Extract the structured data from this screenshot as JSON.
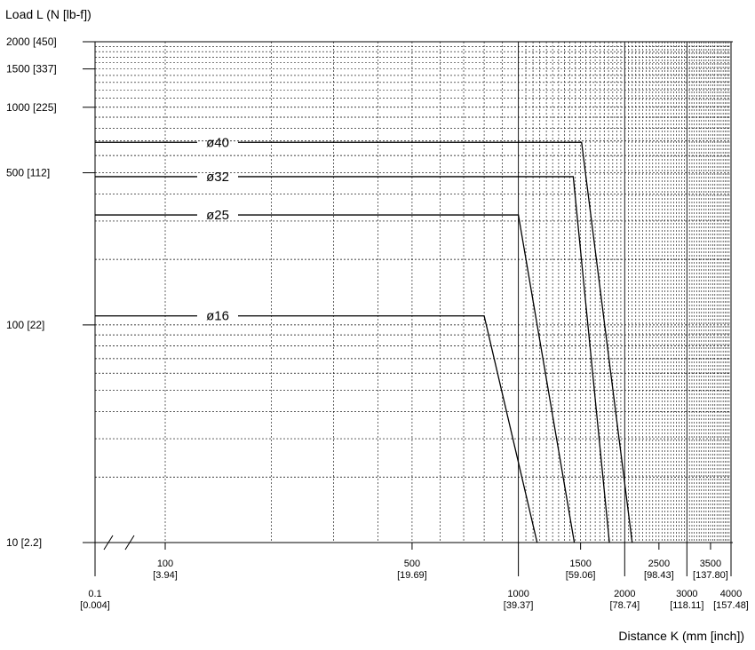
{
  "chart_data": {
    "type": "line",
    "xlabel": "Distance K (mm [inch])",
    "ylabel": "Load L (N [lb-f])",
    "grid": true,
    "x_scale": "log",
    "y_scale": "log",
    "x_axis_break": true,
    "xlim": [
      0.1,
      4000
    ],
    "ylim": [
      10,
      2000
    ],
    "y_ticks": [
      {
        "value": 10,
        "label": "10 [2.2]"
      },
      {
        "value": 100,
        "label": "100 [22]"
      },
      {
        "value": 500,
        "label": "500 [112]"
      },
      {
        "value": 1000,
        "label": "1000 [225]"
      },
      {
        "value": 1500,
        "label": "1500 [337]"
      },
      {
        "value": 2000,
        "label": "2000 [450]"
      }
    ],
    "x_ticks": [
      {
        "value": 0.1,
        "label": "0.1",
        "sub": "[0.004]",
        "row": "low"
      },
      {
        "value": 100,
        "label": "100",
        "sub": "[3.94]",
        "row": "high"
      },
      {
        "value": 500,
        "label": "500",
        "sub": "[19.69]",
        "row": "high"
      },
      {
        "value": 1000,
        "label": "1000",
        "sub": "[39.37]",
        "row": "low"
      },
      {
        "value": 1500,
        "label": "1500",
        "sub": "[59.06]",
        "row": "high"
      },
      {
        "value": 2000,
        "label": "2000",
        "sub": "[78.74]",
        "row": "low"
      },
      {
        "value": 2500,
        "label": "2500",
        "sub": "[98.43]",
        "row": "high"
      },
      {
        "value": 3000,
        "label": "3000",
        "sub": "[118.11]",
        "row": "low"
      },
      {
        "value": 3500,
        "label": "3500",
        "sub": "[137.80]",
        "row": "high"
      },
      {
        "value": 4000,
        "label": "4000",
        "sub": "[157.48]",
        "row": "low"
      }
    ],
    "series": [
      {
        "name": "ø16",
        "points": [
          [
            0.1,
            110
          ],
          [
            800,
            110
          ],
          [
            1130,
            10
          ]
        ]
      },
      {
        "name": "ø25",
        "points": [
          [
            0.1,
            320
          ],
          [
            1000,
            320
          ],
          [
            1440,
            10
          ]
        ]
      },
      {
        "name": "ø32",
        "points": [
          [
            0.1,
            480
          ],
          [
            1430,
            480
          ],
          [
            1810,
            10
          ]
        ]
      },
      {
        "name": "ø40",
        "points": [
          [
            0.1,
            690
          ],
          [
            1510,
            690
          ],
          [
            2100,
            10
          ]
        ]
      }
    ]
  }
}
